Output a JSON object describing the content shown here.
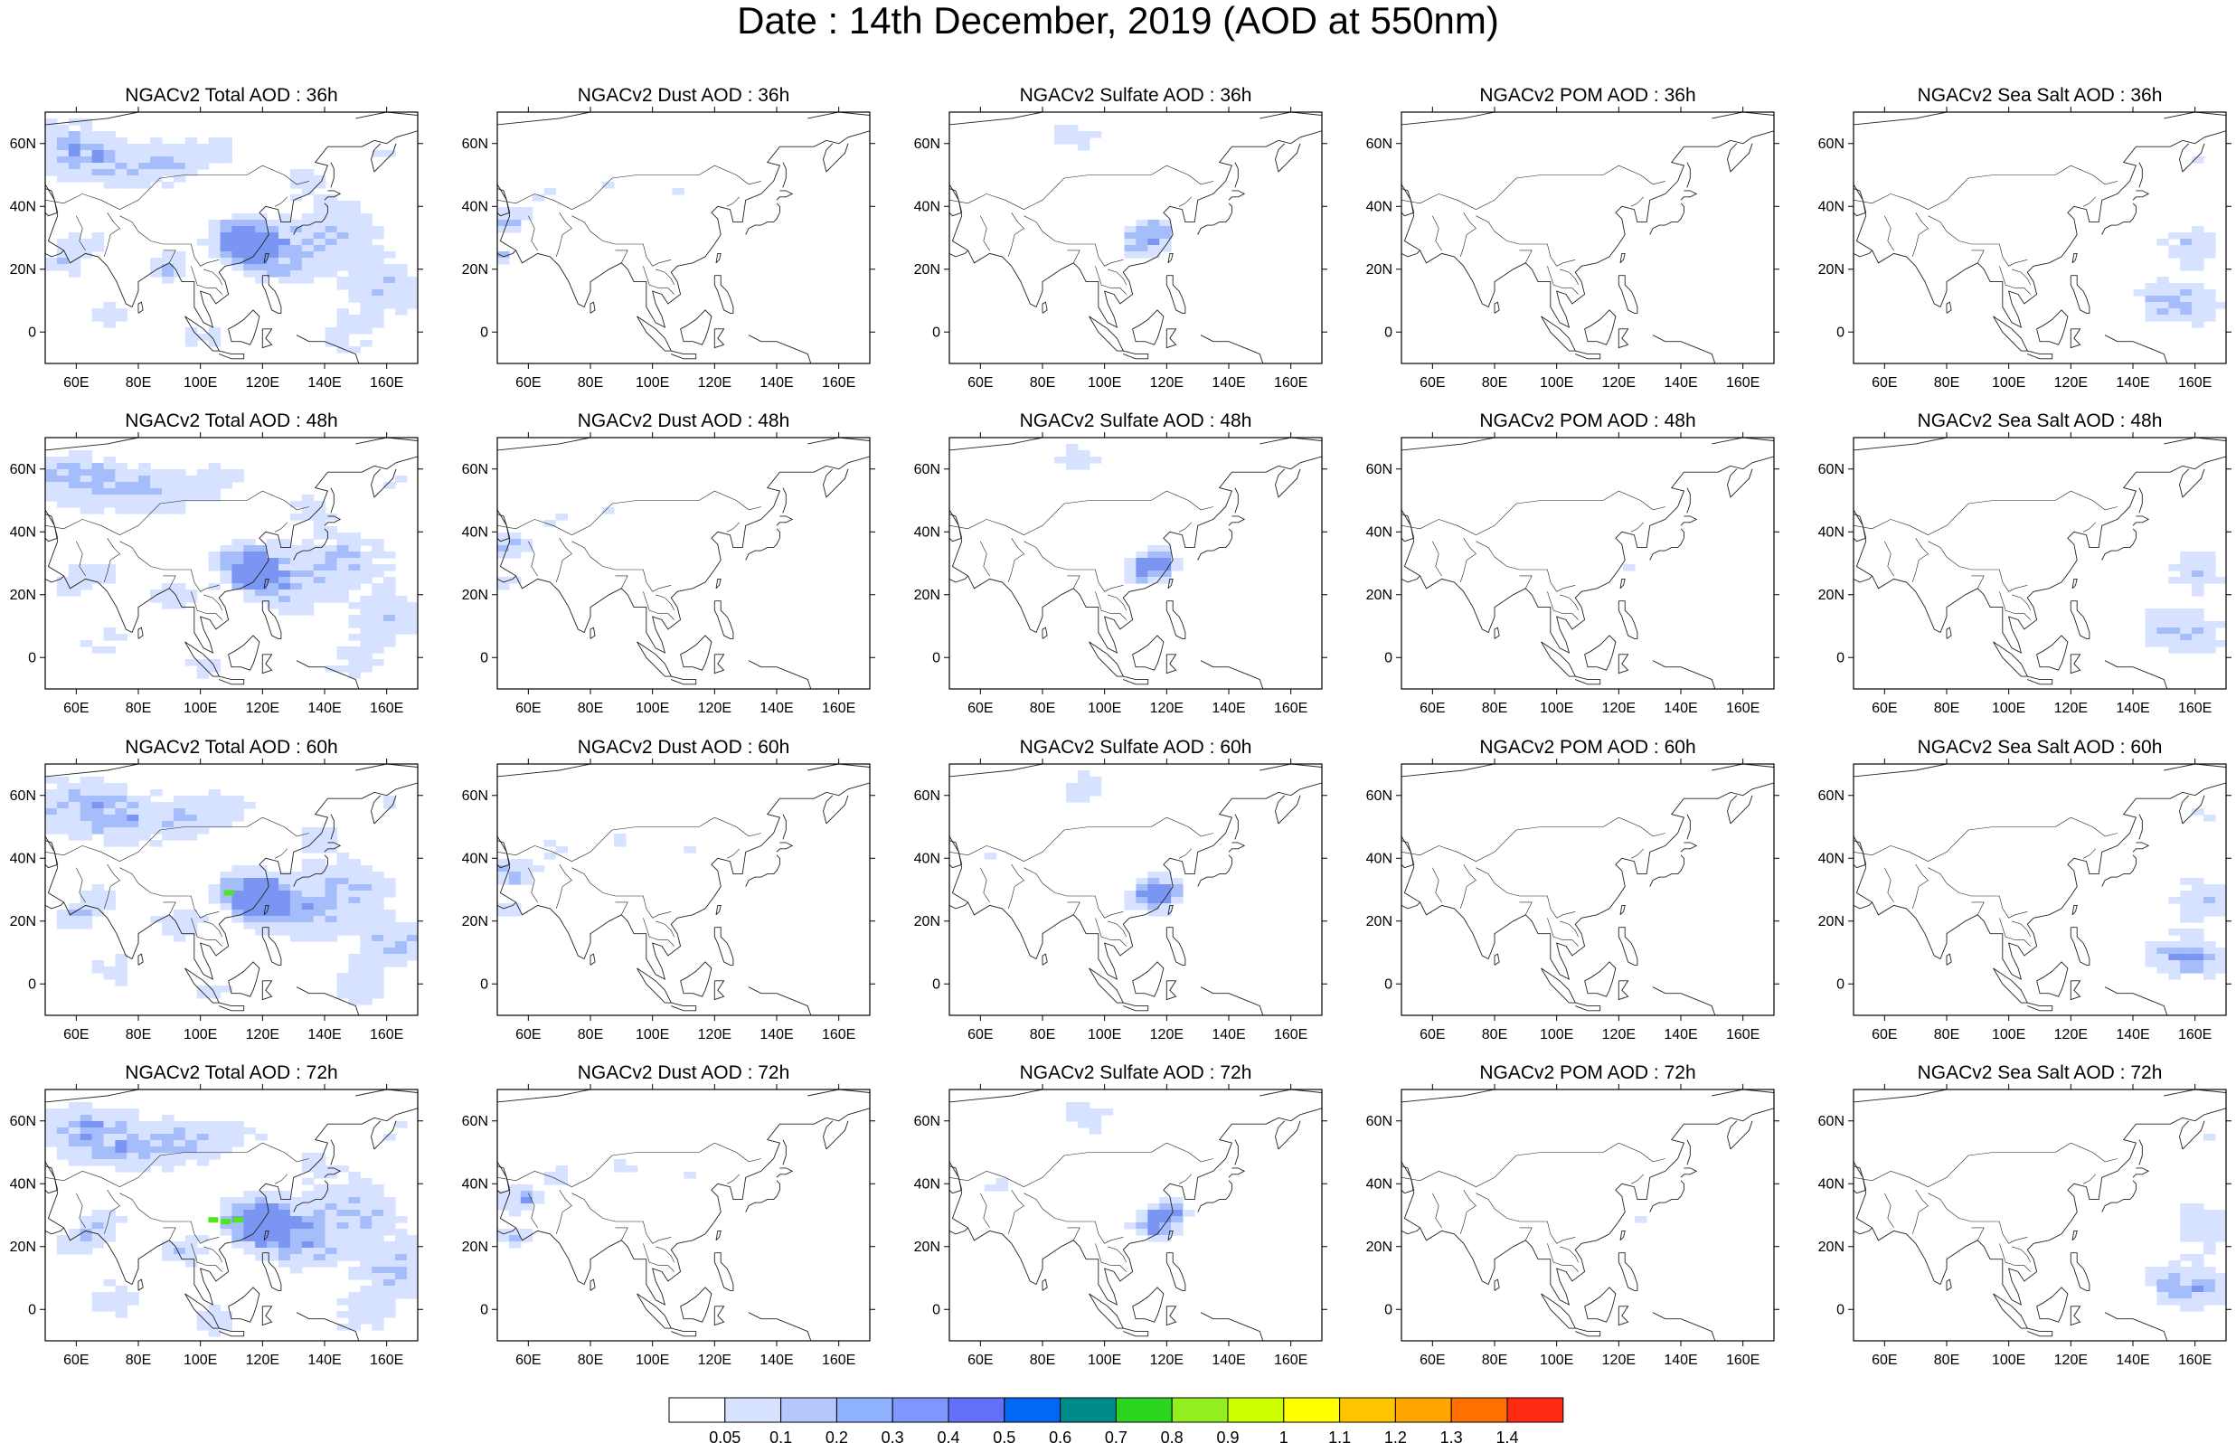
{
  "title": "Date : 14th December, 2019 (AOD at 550nm)",
  "colors": {
    "blue_light": "#d6e2ff",
    "blue_mid": "#a5bdfa",
    "blue_strong": "#7a96f2",
    "green": "#51e51d",
    "coast": "#222222"
  },
  "chart_data": {
    "type": "heatmap",
    "map_extent": {
      "lon": [
        50,
        170
      ],
      "lat": [
        -10,
        70
      ]
    },
    "x_ticks": [
      "60E",
      "80E",
      "100E",
      "120E",
      "140E",
      "160E"
    ],
    "x_tick_values": [
      60,
      80,
      100,
      120,
      140,
      160
    ],
    "y_ticks": [
      "60N",
      "40N",
      "20N",
      "0"
    ],
    "y_tick_values": [
      60,
      40,
      20,
      0
    ],
    "colorbar": {
      "labels": [
        "0.05",
        "0.1",
        "0.2",
        "0.3",
        "0.4",
        "0.5",
        "0.6",
        "0.7",
        "0.8",
        "0.9",
        "1",
        "1.1",
        "1.2",
        "1.3",
        "1.4"
      ],
      "colors": [
        "#ffffff",
        "#d6e2ff",
        "#b5c9ff",
        "#8eb2ff",
        "#7f96ff",
        "#6370f7",
        "#0068f5",
        "#008b8b",
        "#2bd51f",
        "#93ee20",
        "#ccff00",
        "#ffff00",
        "#ffc400",
        "#ffa500",
        "#ff7000",
        "#ff2a12"
      ]
    },
    "panels": [
      {
        "title": "NGACv2 Total AOD : 36h",
        "variable": "total",
        "hour": 36
      },
      {
        "title": "NGACv2 Dust AOD : 36h",
        "variable": "dust",
        "hour": 36
      },
      {
        "title": "NGACv2 Sulfate AOD : 36h",
        "variable": "sulfate",
        "hour": 36
      },
      {
        "title": "NGACv2 POM AOD : 36h",
        "variable": "pom",
        "hour": 36
      },
      {
        "title": "NGACv2 Sea Salt AOD : 36h",
        "variable": "seasalt",
        "hour": 36
      },
      {
        "title": "NGACv2 Total AOD : 48h",
        "variable": "total",
        "hour": 48
      },
      {
        "title": "NGACv2 Dust AOD : 48h",
        "variable": "dust",
        "hour": 48
      },
      {
        "title": "NGACv2 Sulfate AOD : 48h",
        "variable": "sulfate",
        "hour": 48
      },
      {
        "title": "NGACv2 POM AOD : 48h",
        "variable": "pom",
        "hour": 48
      },
      {
        "title": "NGACv2 Sea Salt AOD : 48h",
        "variable": "seasalt",
        "hour": 48
      },
      {
        "title": "NGACv2 Total AOD : 60h",
        "variable": "total",
        "hour": 60
      },
      {
        "title": "NGACv2 Dust AOD : 60h",
        "variable": "dust",
        "hour": 60
      },
      {
        "title": "NGACv2 Sulfate AOD : 60h",
        "variable": "sulfate",
        "hour": 60
      },
      {
        "title": "NGACv2 POM AOD : 60h",
        "variable": "pom",
        "hour": 60
      },
      {
        "title": "NGACv2 Sea Salt AOD : 60h",
        "variable": "seasalt",
        "hour": 60
      },
      {
        "title": "NGACv2 Total AOD : 72h",
        "variable": "total",
        "hour": 72
      },
      {
        "title": "NGACv2 Dust AOD : 72h",
        "variable": "dust",
        "hour": 72
      },
      {
        "title": "NGACv2 Sulfate AOD : 72h",
        "variable": "sulfate",
        "hour": 72
      },
      {
        "title": "NGACv2 POM AOD : 72h",
        "variable": "pom",
        "hour": 72
      },
      {
        "title": "NGACv2 Sea Salt  AOD : 72h",
        "variable": "seasalt",
        "hour": 72
      }
    ]
  }
}
